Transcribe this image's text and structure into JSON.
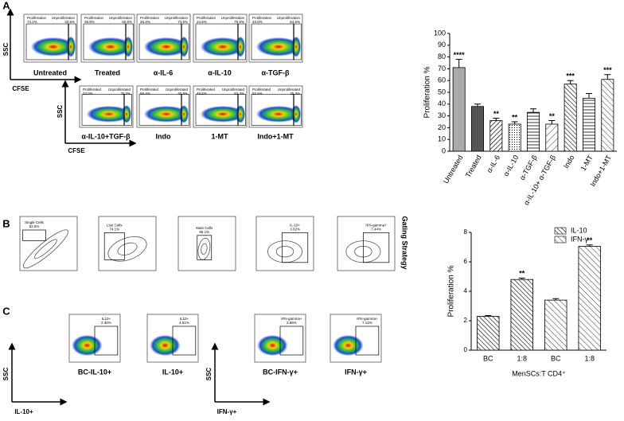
{
  "panels": {
    "letters": [
      "A",
      "B",
      "C"
    ],
    "a": {
      "ylabel": "SSC",
      "xlabel": "CFSE",
      "plots": [
        {
          "label": "Untreated",
          "gates": [
            "Proliferation",
            "74.1%",
            "Unproliferation",
            "33.5%"
          ]
        },
        {
          "label": "Treated",
          "gates": [
            "Proliferation",
            "39.8%",
            "Unproliferation",
            "60.6%"
          ]
        },
        {
          "label": "α-IL-6",
          "gates": [
            "Proliferation",
            "26.3%",
            "Unproliferation",
            "73.5%"
          ]
        },
        {
          "label": "α-IL-10",
          "gates": [
            "Proliferation",
            "24.6%",
            "Unproliferation",
            "75.5%"
          ]
        },
        {
          "label": "α-TGF-β",
          "gates": [
            "Proliferation",
            "33.6%",
            "Unproliferation",
            "64.6%"
          ]
        },
        {
          "label": "α-IL-10+TGF-β",
          "gates": [
            "Proliferated",
            "24.0%",
            "Unproliferated",
            "75.2%"
          ]
        },
        {
          "label": "Indo",
          "gates": [
            "Proliferated",
            "58.4%",
            "Unproliferated",
            "40.8%"
          ]
        },
        {
          "label": "1-MT",
          "gates": [
            "Proliferated",
            "46.5%",
            "Unproliferated",
            "52.4%"
          ]
        },
        {
          "label": "Indo+1-MT",
          "gates": [
            "Proliferated",
            "62.6%",
            "Unproliferated",
            "35.3%"
          ]
        }
      ]
    },
    "b": {
      "side_label": "Gating Strategy",
      "plots": [
        {
          "gates": [
            "Single Cells",
            "92.5%"
          ]
        },
        {
          "gates": [
            "Live Cells",
            "74.1%"
          ]
        },
        {
          "gates": [
            "Main Cells",
            "98.1%"
          ]
        },
        {
          "gates": [
            "IL-10+",
            "3.02%"
          ]
        },
        {
          "gates": [
            "IFN-gamma+",
            "7.44%"
          ]
        }
      ]
    },
    "c": {
      "ylabel": "SSC",
      "xlabels": [
        "IL-10+",
        "IFN-γ+"
      ],
      "plots": [
        {
          "label": "BC-IL-10+",
          "gates": [
            "IL10+",
            "2.30%"
          ]
        },
        {
          "label": "IL-10+",
          "gates": [
            "IL10+",
            "4.51%"
          ]
        },
        {
          "label": "BC-IFN-γ+",
          "gates": [
            "IFN-gamma+",
            "3.66%"
          ]
        },
        {
          "label": "IFN-γ+",
          "gates": [
            "IFN-gamma+",
            "7.14%"
          ]
        }
      ]
    }
  },
  "chart_data": [
    {
      "type": "bar",
      "ylabel": "Proliferation %",
      "categories": [
        "Untreated",
        "Treated",
        "α-IL-6",
        "α-IL-10",
        "α-TGF-β",
        "α-IL-10+ α-TGF-β",
        "Indo",
        "1-MT",
        "Indo+1-MT"
      ],
      "values": [
        71,
        38,
        26,
        23,
        33,
        23,
        57,
        45,
        61
      ],
      "errors": [
        7,
        2,
        2,
        2,
        3,
        3,
        3,
        4,
        4
      ],
      "annotations": [
        "****",
        null,
        "**",
        "**",
        null,
        "**",
        "***",
        null,
        "***"
      ],
      "ylim": [
        0,
        100
      ],
      "yticks": [
        0,
        10,
        20,
        30,
        40,
        50,
        60,
        70,
        80,
        90,
        100
      ]
    },
    {
      "type": "bar",
      "ylabel": "Proliferation %",
      "xlabel": "MenSCs:T CD4⁺",
      "categories": [
        "BC",
        "1:8",
        "BC",
        "1:8"
      ],
      "series": [
        {
          "name": "IL-10",
          "values": [
            2.3,
            4.8,
            null,
            null
          ],
          "errors": [
            0.05,
            0.1,
            null,
            null
          ]
        },
        {
          "name": "IFN-γ",
          "values": [
            null,
            null,
            3.4,
            7.05
          ],
          "errors": [
            null,
            null,
            0.1,
            0.1
          ]
        }
      ],
      "annotations": [
        null,
        "**",
        null,
        "**"
      ],
      "ylim": [
        0,
        8
      ],
      "yticks": [
        0,
        2,
        4,
        6,
        8
      ],
      "legend": "top-right"
    }
  ]
}
